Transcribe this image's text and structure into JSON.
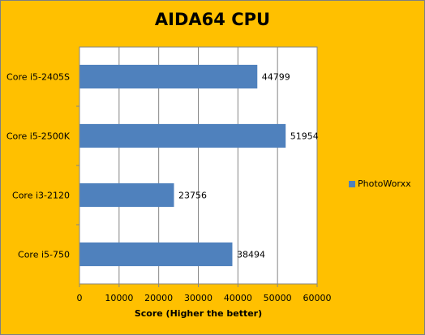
{
  "colors": {
    "background": "#ffc000",
    "plot_area": "#ffffff",
    "bar": "#4f81bd"
  },
  "chart_data": {
    "type": "bar",
    "orientation": "horizontal",
    "title": "AIDA64 CPU",
    "xlabel": "Score (Higher the better)",
    "ylabel": "",
    "categories": [
      "Core i5-2405S",
      "Core i5-2500K",
      "Core i3-2120",
      "Core i5-750"
    ],
    "series": [
      {
        "name": "PhotoWorxx",
        "values": [
          44799,
          51954,
          23756,
          38494
        ]
      }
    ],
    "xlim": [
      0,
      60000
    ],
    "xticks": [
      0,
      10000,
      20000,
      30000,
      40000,
      50000,
      60000
    ],
    "grid": true,
    "legend_position": "right",
    "data_labels": true
  }
}
